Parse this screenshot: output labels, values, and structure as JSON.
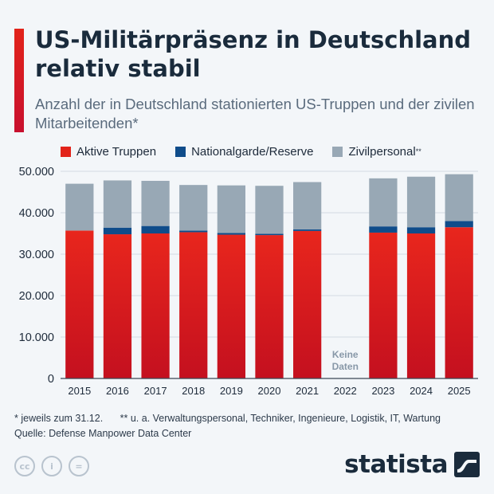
{
  "header": {
    "title": "US-Militärpräsenz in Deutschland relativ stabil",
    "subtitle": "Anzahl der in Deutschland stationierten US-Truppen und der zivilen Mitarbeitenden*"
  },
  "legend": {
    "items": [
      {
        "label": "Aktive Truppen",
        "sup": "",
        "color": "#e2231a"
      },
      {
        "label": "Nationalgarde/Reserve",
        "sup": "",
        "color": "#0f4c8a"
      },
      {
        "label": "Zivilpersonal",
        "sup": "**",
        "color": "#98a8b5"
      }
    ]
  },
  "chart_data": {
    "type": "bar",
    "stacked": true,
    "categories": [
      "2015",
      "2016",
      "2017",
      "2018",
      "2019",
      "2020",
      "2021",
      "2022",
      "2023",
      "2024",
      "2025"
    ],
    "series": [
      {
        "name": "Aktive Truppen",
        "color": "#e2231a",
        "values": [
          35700,
          34800,
          35000,
          35300,
          34700,
          34600,
          35600,
          null,
          35200,
          35000,
          36500
        ]
      },
      {
        "name": "Nationalgarde/Reserve",
        "color": "#0f4c8a",
        "values": [
          0,
          1600,
          1800,
          400,
          400,
          300,
          400,
          null,
          1500,
          1500,
          1500
        ]
      },
      {
        "name": "Zivilpersonal",
        "color": "#98a8b5",
        "values": [
          11300,
          11400,
          10900,
          11000,
          11500,
          11600,
          11400,
          null,
          11600,
          12200,
          11300
        ]
      }
    ],
    "ylim": [
      0,
      50000
    ],
    "yticks": [
      "0",
      "10.000",
      "20.000",
      "30.000",
      "40.000",
      "50.000"
    ],
    "grid": true,
    "legend_position": "top",
    "annotations": [
      {
        "category": "2022",
        "lines": [
          "Keine",
          "Daten"
        ]
      }
    ]
  },
  "footer": {
    "note1": "* jeweils zum 31.12.",
    "note2": "** u. a. Verwaltungspersonal, Techniker, Ingenieure, Logistik, IT, Wartung",
    "source": "Quelle: Defense Manpower Data Center",
    "brand": "statista",
    "license_icons": [
      {
        "name": "cc-icon",
        "glyph": "cc"
      },
      {
        "name": "attribution-icon",
        "glyph": "i"
      },
      {
        "name": "no-derivatives-icon",
        "glyph": "="
      }
    ]
  }
}
